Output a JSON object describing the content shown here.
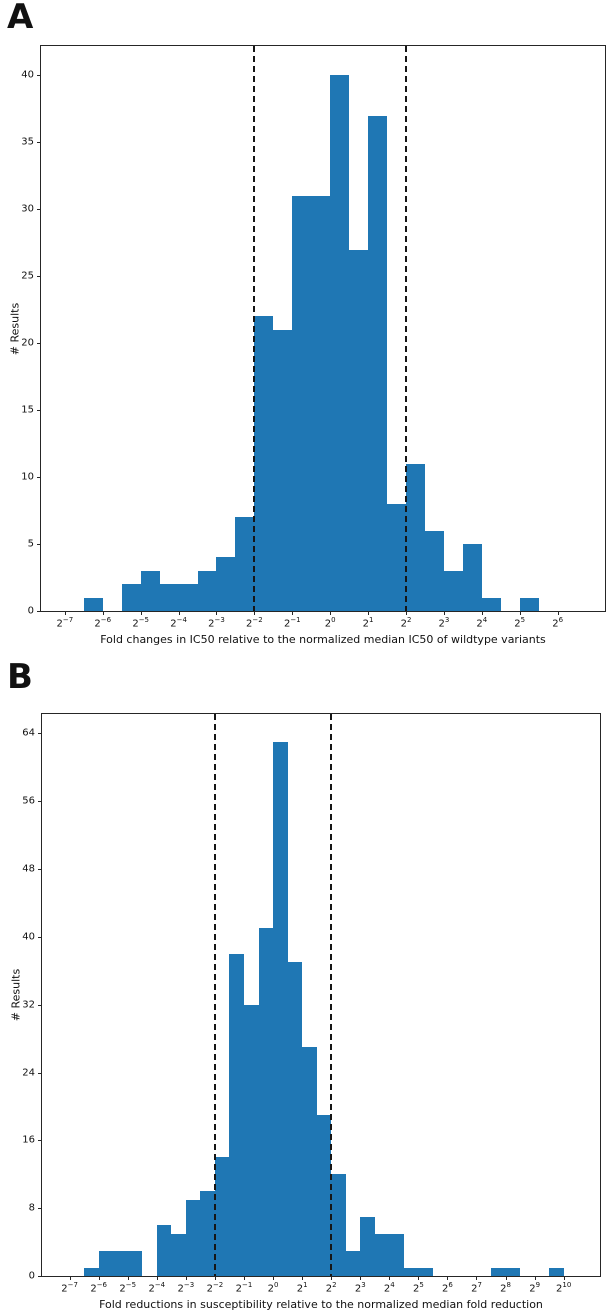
{
  "figure": {
    "background": "#ffffff",
    "bar_color": "#1f77b4",
    "axis_color": "#262626",
    "dash_line_color": "#161616",
    "panel_labels": [
      "A",
      "B"
    ]
  },
  "chart_data": [
    {
      "type": "bar",
      "subtype": "histogram",
      "panel_label": "A",
      "title": "",
      "xlabel": "Fold changes in IC50 relative to the normalized median IC50 of wildtype variants",
      "ylabel": "# Results",
      "x_scale": "log2",
      "x_tick_base": "2",
      "bin_width_log2": 0.5,
      "bin_left_edges_log2": [
        -6.5,
        -6,
        -5.5,
        -5,
        -4.5,
        -4,
        -3.5,
        -3,
        -2.5,
        -2,
        -1.5,
        -1,
        -0.5,
        0,
        0.5,
        1,
        1.5,
        2,
        2.5,
        3,
        3.5,
        4,
        4.5,
        5
      ],
      "counts": [
        1,
        0,
        2,
        3,
        2,
        2,
        3,
        4,
        7,
        22,
        21,
        31,
        31,
        40,
        27,
        37,
        8,
        11,
        6,
        3,
        5,
        1,
        0,
        1
      ],
      "x_tick_exponents": [
        -7,
        -6,
        -5,
        -4,
        -3,
        -2,
        -1,
        0,
        1,
        2,
        3,
        4,
        5,
        6
      ],
      "y_ticks": [
        0,
        5,
        10,
        15,
        20,
        25,
        30,
        35,
        40
      ],
      "xlim_log2": [
        -7.63,
        7.25
      ],
      "ylim": [
        0,
        42.2
      ],
      "vlines_log2": [
        -2,
        2
      ],
      "grid": false,
      "legend": "none"
    },
    {
      "type": "bar",
      "subtype": "histogram",
      "panel_label": "B",
      "title": "",
      "xlabel": "Fold reductions in susceptibility relative to the normalized median fold reduction",
      "ylabel": "# Results",
      "x_scale": "log2",
      "x_tick_base": "2",
      "bin_width_log2": 0.5,
      "bin_left_edges_log2": [
        -6.5,
        -6,
        -5.5,
        -5,
        -4.5,
        -4,
        -3.5,
        -3,
        -2.5,
        -2,
        -1.5,
        -1,
        -0.5,
        0,
        0.5,
        1,
        1.5,
        2,
        2.5,
        3,
        3.5,
        4,
        4.5,
        5,
        5.5,
        6,
        6.5,
        7,
        7.5,
        8,
        8.5,
        9,
        9.5
      ],
      "counts": [
        1,
        3,
        3,
        3,
        0,
        6,
        5,
        9,
        10,
        14,
        38,
        32,
        41,
        63,
        37,
        27,
        19,
        12,
        3,
        7,
        5,
        5,
        1,
        1,
        0,
        0,
        0,
        0,
        1,
        1,
        0,
        0,
        1
      ],
      "x_tick_exponents": [
        -7,
        -6,
        -5,
        -4,
        -3,
        -2,
        -1,
        0,
        1,
        2,
        3,
        4,
        5,
        6,
        7,
        8,
        9,
        10
      ],
      "y_ticks": [
        0,
        8,
        16,
        24,
        32,
        40,
        48,
        56,
        64
      ],
      "xlim_log2": [
        -7.95,
        11.25
      ],
      "ylim": [
        0,
        66.3
      ],
      "vlines_log2": [
        -2,
        2
      ],
      "grid": false,
      "legend": "none"
    }
  ]
}
